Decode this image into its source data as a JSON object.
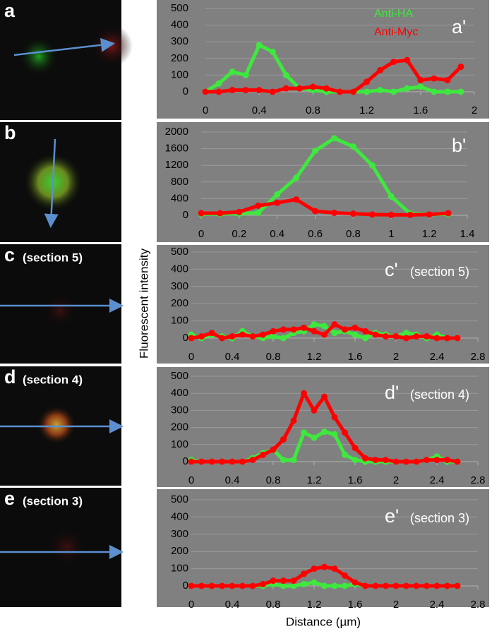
{
  "axis_labels": {
    "ylabel": "Fluorescent intensity",
    "xlabel": "Distance (µm)"
  },
  "panels": [
    {
      "letter": "a"
    },
    {
      "letter": "b"
    },
    {
      "letter": "c",
      "note": "(section 5)"
    },
    {
      "letter": "d",
      "note": "(section 4)"
    },
    {
      "letter": "e",
      "note": "(section 3)"
    }
  ],
  "chart_data": [
    {
      "type": "line",
      "label": "a'",
      "legend": true,
      "x": [
        0,
        0.1,
        0.2,
        0.3,
        0.4,
        0.5,
        0.6,
        0.7,
        0.8,
        0.9,
        1.0,
        1.1,
        1.2,
        1.3,
        1.4,
        1.5,
        1.6,
        1.7,
        1.8,
        1.9
      ],
      "series": [
        {
          "name": "Anti-HA",
          "color": "#3ee83e",
          "values": [
            0,
            50,
            120,
            100,
            280,
            240,
            100,
            20,
            10,
            0,
            0,
            0,
            0,
            10,
            0,
            20,
            30,
            0,
            0,
            0
          ]
        },
        {
          "name": "Anti-Myc",
          "color": "#ff0000",
          "values": [
            0,
            0,
            10,
            10,
            10,
            0,
            20,
            20,
            30,
            20,
            0,
            0,
            60,
            130,
            180,
            190,
            70,
            80,
            70,
            150
          ]
        }
      ],
      "xlim": [
        0,
        2
      ],
      "xticks": [
        0,
        0.4,
        0.8,
        1.2,
        1.6,
        2
      ],
      "ylim": [
        0,
        500
      ],
      "yticks": [
        0,
        100,
        200,
        300,
        400,
        500
      ],
      "grid": true
    },
    {
      "type": "line",
      "label": "b'",
      "x": [
        0,
        0.1,
        0.2,
        0.3,
        0.4,
        0.5,
        0.6,
        0.7,
        0.8,
        0.9,
        1.0,
        1.1,
        1.2,
        1.3
      ],
      "series": [
        {
          "color": "#3ee83e",
          "values": [
            30,
            30,
            40,
            60,
            500,
            900,
            1550,
            1850,
            1650,
            1200,
            450,
            40,
            20,
            30
          ]
        },
        {
          "color": "#ff0000",
          "values": [
            50,
            50,
            80,
            230,
            300,
            380,
            100,
            60,
            40,
            20,
            10,
            10,
            20,
            50
          ]
        }
      ],
      "xlim": [
        0,
        1.4
      ],
      "xticks": [
        0,
        0.2,
        0.4,
        0.6,
        0.8,
        1,
        1.2,
        1.4
      ],
      "ylim": [
        0,
        2000
      ],
      "yticks": [
        0,
        400,
        800,
        1200,
        1600,
        2000
      ],
      "grid": true
    },
    {
      "type": "line",
      "label": "c'",
      "note": "(section 5)",
      "x": [
        0,
        0.1,
        0.2,
        0.3,
        0.4,
        0.5,
        0.6,
        0.7,
        0.8,
        0.9,
        1.0,
        1.1,
        1.2,
        1.3,
        1.4,
        1.5,
        1.6,
        1.7,
        1.8,
        1.9,
        2.0,
        2.1,
        2.2,
        2.3,
        2.4,
        2.5,
        2.6
      ],
      "series": [
        {
          "color": "#3ee83e",
          "values": [
            20,
            0,
            20,
            10,
            0,
            40,
            10,
            0,
            10,
            0,
            30,
            40,
            80,
            70,
            30,
            40,
            20,
            0,
            30,
            20,
            10,
            30,
            20,
            0,
            20,
            0,
            0
          ]
        },
        {
          "color": "#ff0000",
          "values": [
            0,
            10,
            30,
            0,
            10,
            20,
            10,
            20,
            40,
            50,
            50,
            60,
            40,
            20,
            80,
            50,
            60,
            40,
            20,
            10,
            10,
            0,
            10,
            10,
            0,
            0,
            0
          ]
        }
      ],
      "xlim": [
        0,
        2.8
      ],
      "xticks": [
        0,
        0.4,
        0.8,
        1.2,
        1.6,
        2,
        2.4,
        2.8
      ],
      "ylim": [
        0,
        500
      ],
      "yticks": [
        0,
        100,
        200,
        300,
        400,
        500
      ],
      "grid": true
    },
    {
      "type": "line",
      "label": "d'",
      "note": "(section 4)",
      "x": [
        0,
        0.1,
        0.2,
        0.3,
        0.4,
        0.5,
        0.6,
        0.7,
        0.8,
        0.9,
        1.0,
        1.1,
        1.2,
        1.3,
        1.4,
        1.5,
        1.6,
        1.7,
        1.8,
        1.9,
        2.0,
        2.1,
        2.2,
        2.3,
        2.4,
        2.5,
        2.6
      ],
      "series": [
        {
          "color": "#3ee83e",
          "values": [
            10,
            0,
            0,
            0,
            0,
            0,
            20,
            50,
            70,
            10,
            10,
            170,
            140,
            175,
            160,
            40,
            10,
            0,
            0,
            0,
            0,
            0,
            0,
            10,
            30,
            0,
            0
          ]
        },
        {
          "color": "#ff0000",
          "values": [
            0,
            0,
            0,
            0,
            0,
            0,
            10,
            40,
            70,
            130,
            240,
            400,
            300,
            380,
            260,
            170,
            80,
            20,
            10,
            10,
            0,
            0,
            0,
            10,
            10,
            10,
            0
          ]
        }
      ],
      "xlim": [
        0,
        2.8
      ],
      "xticks": [
        0,
        0.4,
        0.8,
        1.2,
        1.6,
        2,
        2.4,
        2.8
      ],
      "ylim": [
        0,
        500
      ],
      "yticks": [
        0,
        100,
        200,
        300,
        400,
        500
      ],
      "grid": true
    },
    {
      "type": "line",
      "label": "e'",
      "note": "(section 3)",
      "x": [
        0,
        0.1,
        0.2,
        0.3,
        0.4,
        0.5,
        0.6,
        0.7,
        0.8,
        0.9,
        1.0,
        1.1,
        1.2,
        1.3,
        1.4,
        1.5,
        1.6,
        1.7,
        1.8,
        1.9,
        2.0,
        2.1,
        2.2,
        2.3,
        2.4,
        2.5,
        2.6
      ],
      "series": [
        {
          "color": "#3ee83e",
          "values": [
            0,
            0,
            0,
            0,
            0,
            0,
            0,
            0,
            10,
            0,
            0,
            10,
            20,
            0,
            0,
            0,
            10,
            0,
            0,
            0,
            0,
            0,
            0,
            0,
            0,
            0,
            0
          ]
        },
        {
          "color": "#ff0000",
          "values": [
            0,
            0,
            0,
            0,
            0,
            0,
            0,
            10,
            30,
            30,
            30,
            70,
            100,
            110,
            100,
            60,
            20,
            0,
            0,
            0,
            0,
            0,
            0,
            0,
            0,
            0,
            0
          ]
        }
      ],
      "xlim": [
        0,
        2.8
      ],
      "xticks": [
        0,
        0.4,
        0.8,
        1.2,
        1.6,
        2,
        2.4,
        2.8
      ],
      "ylim": [
        0,
        500
      ],
      "yticks": [
        0,
        100,
        200,
        300,
        400,
        500
      ],
      "grid": true
    }
  ]
}
